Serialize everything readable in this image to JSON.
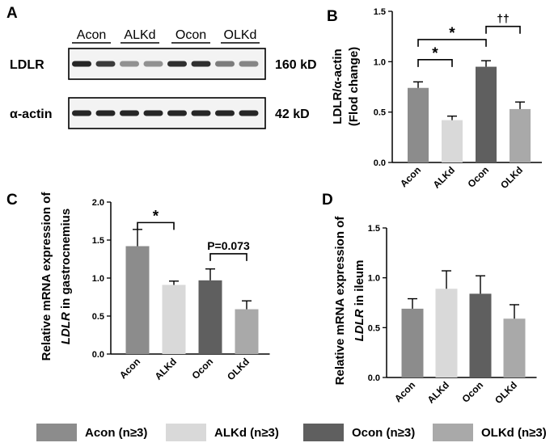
{
  "colors": {
    "Acon": "#8c8c8c",
    "ALKd": "#d9d9d9",
    "Ocon": "#5f5f5f",
    "OLKd": "#a9a9a9",
    "axis": "#000000"
  },
  "panel_a": {
    "letter": "A",
    "lanes": [
      "Acon",
      "ALKd",
      "Ocon",
      "OLKd"
    ],
    "rows": [
      {
        "protein": "LDLR",
        "size": "160 kD"
      },
      {
        "protein": "α-actin",
        "size": "42 kD"
      }
    ]
  },
  "chart_data": [
    {
      "panel": "B",
      "type": "bar",
      "categories": [
        "Acon",
        "ALKd",
        "Ocon",
        "OLKd"
      ],
      "values": [
        0.74,
        0.42,
        0.95,
        0.53
      ],
      "errors": [
        0.06,
        0.04,
        0.06,
        0.07
      ],
      "ylabel_lines": [
        "LDLR/α-actin",
        "(Flod change)"
      ],
      "ylim": [
        0,
        1.5
      ],
      "yticks": [
        "0.0",
        "0.5",
        "1.0",
        "1.5"
      ],
      "annotations": [
        {
          "from": 0,
          "to": 1,
          "label": "*",
          "y": 1.02
        },
        {
          "from": 0,
          "to": 2,
          "label": "*",
          "y": 1.22
        },
        {
          "from": 2,
          "to": 3,
          "label": "††",
          "y": 1.35
        }
      ]
    },
    {
      "panel": "C",
      "type": "bar",
      "categories": [
        "Acon",
        "ALKd",
        "Ocon",
        "OLKd"
      ],
      "values": [
        1.42,
        0.91,
        0.97,
        0.59
      ],
      "errors": [
        0.22,
        0.05,
        0.15,
        0.11
      ],
      "ylabel_lines": [
        "Relative mRNA expression of",
        "LDLR in gastrocnemius"
      ],
      "ylim": [
        0,
        2.0
      ],
      "yticks": [
        "0.0",
        "0.5",
        "1.0",
        "1.5",
        "2.0"
      ],
      "annotations": [
        {
          "from": 0,
          "to": 1,
          "label": "*",
          "y": 1.73
        },
        {
          "from": 2,
          "to": 3,
          "label": "P=0.073",
          "y": 1.32
        }
      ]
    },
    {
      "panel": "D",
      "type": "bar",
      "categories": [
        "Acon",
        "ALKd",
        "Ocon",
        "OLKd"
      ],
      "values": [
        0.69,
        0.89,
        0.84,
        0.59
      ],
      "errors": [
        0.1,
        0.18,
        0.18,
        0.14
      ],
      "ylabel_lines": [
        "Relative mRNA expression of",
        "LDLR in ileum"
      ],
      "ylim": [
        0,
        1.5
      ],
      "yticks": [
        "0.0",
        "0.5",
        "1.0",
        "1.5"
      ],
      "annotations": []
    }
  ],
  "legend": [
    {
      "label": "Acon (n≥3)",
      "color": "#8c8c8c"
    },
    {
      "label": "ALKd (n≥3)",
      "color": "#d9d9d9"
    },
    {
      "label": "Ocon (n≥3)",
      "color": "#5f5f5f"
    },
    {
      "label": "OLKd (n≥3)",
      "color": "#a9a9a9"
    }
  ]
}
